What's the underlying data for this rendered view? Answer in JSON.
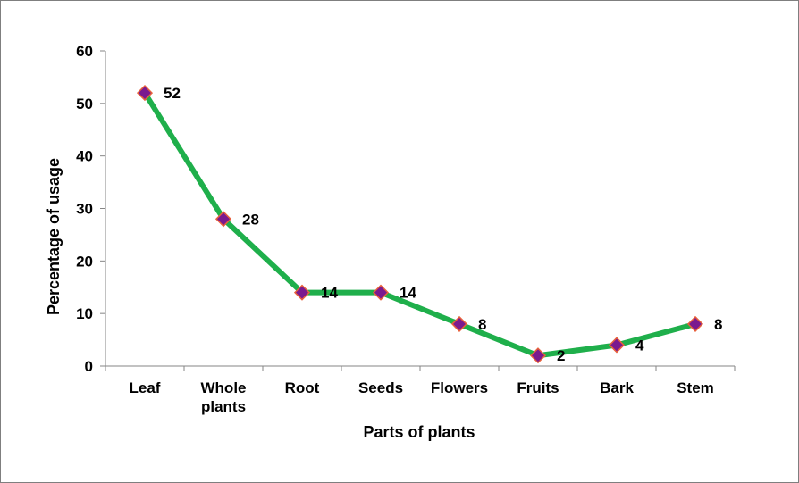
{
  "chart_data": {
    "type": "line",
    "categories": [
      [
        "Leaf"
      ],
      [
        "Whole",
        "plants"
      ],
      [
        "Root"
      ],
      [
        "Seeds"
      ],
      [
        "Flowers"
      ],
      [
        "Fruits"
      ],
      [
        "Bark"
      ],
      [
        "Stem"
      ]
    ],
    "values": [
      52,
      28,
      14,
      14,
      8,
      2,
      4,
      8
    ],
    "data_labels": [
      "52",
      "28",
      "14",
      "14",
      "8",
      "2",
      "4",
      "8"
    ],
    "title": "",
    "xlabel": "Parts of plants",
    "ylabel": "Percentage of usage",
    "ylim": [
      0,
      60
    ],
    "yticks": [
      "0",
      "10",
      "20",
      "30",
      "40",
      "50",
      "60"
    ],
    "grid": false,
    "legend": "none",
    "line_color": "#1faf4b",
    "marker_fill": "#7a1a8f",
    "marker_edge": "#e8603c",
    "marker_shape": "diamond"
  }
}
